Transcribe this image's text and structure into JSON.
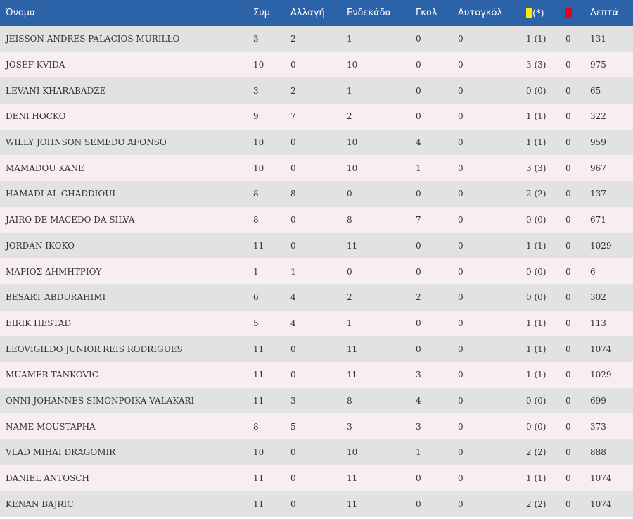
{
  "colors": {
    "header_bg": "#2c63a8",
    "row_odd": "#e2e2e2",
    "row_even": "#f8eef0",
    "yellow_card": "#ffeb00",
    "red_card": "#e8001c"
  },
  "columns": {
    "name": "Όνομα",
    "appearances": "Συμ",
    "substitute": "Αλλαγή",
    "starting": "Ενδεκάδα",
    "goals": "Γκολ",
    "own_goals": "Αυτογκόλ",
    "yellow_suffix": "(*)",
    "minutes": "Λεπτά"
  },
  "players": [
    {
      "name": "JEISSON ANDRES PALACIOS MURILLO",
      "app": "3",
      "sub": "2",
      "start": "1",
      "goals": "0",
      "own": "0",
      "yellow": "1 (1)",
      "red": "0",
      "min": "131"
    },
    {
      "name": "JOSEF KVIDA",
      "app": "10",
      "sub": "0",
      "start": "10",
      "goals": "0",
      "own": "0",
      "yellow": "3 (3)",
      "red": "0",
      "min": "975"
    },
    {
      "name": "LEVANI KHARABADZE",
      "app": "3",
      "sub": "2",
      "start": "1",
      "goals": "0",
      "own": "0",
      "yellow": "0 (0)",
      "red": "0",
      "min": "65"
    },
    {
      "name": "DENI HOCKO",
      "app": "9",
      "sub": "7",
      "start": "2",
      "goals": "0",
      "own": "0",
      "yellow": "1 (1)",
      "red": "0",
      "min": "322"
    },
    {
      "name": "WILLY JOHNSON SEMEDO AFONSO",
      "app": "10",
      "sub": "0",
      "start": "10",
      "goals": "4",
      "own": "0",
      "yellow": "1 (1)",
      "red": "0",
      "min": "959"
    },
    {
      "name": "MAMADOU KANE",
      "app": "10",
      "sub": "0",
      "start": "10",
      "goals": "1",
      "own": "0",
      "yellow": "3 (3)",
      "red": "0",
      "min": "967"
    },
    {
      "name": "HAMADI AL GHADDIOUI",
      "app": "8",
      "sub": "8",
      "start": "0",
      "goals": "0",
      "own": "0",
      "yellow": "2 (2)",
      "red": "0",
      "min": "137"
    },
    {
      "name": "JAIRO DE MACEDO DA SILVA",
      "app": "8",
      "sub": "0",
      "start": "8",
      "goals": "7",
      "own": "0",
      "yellow": "0 (0)",
      "red": "0",
      "min": "671"
    },
    {
      "name": "JORDAN IKOKO",
      "app": "11",
      "sub": "0",
      "start": "11",
      "goals": "0",
      "own": "0",
      "yellow": "1 (1)",
      "red": "0",
      "min": "1029"
    },
    {
      "name": "ΜΑΡΙΟΣ ΔΗΜΗΤΡΙΟΥ",
      "app": "1",
      "sub": "1",
      "start": "0",
      "goals": "0",
      "own": "0",
      "yellow": "0 (0)",
      "red": "0",
      "min": "6"
    },
    {
      "name": "BESART ABDURAHIMI",
      "app": "6",
      "sub": "4",
      "start": "2",
      "goals": "2",
      "own": "0",
      "yellow": "0 (0)",
      "red": "0",
      "min": "302"
    },
    {
      "name": "EIRIK HESTAD",
      "app": "5",
      "sub": "4",
      "start": "1",
      "goals": "0",
      "own": "0",
      "yellow": "1 (1)",
      "red": "0",
      "min": "113"
    },
    {
      "name": "LEOVIGILDO JUNIOR REIS RODRIGUES",
      "app": "11",
      "sub": "0",
      "start": "11",
      "goals": "0",
      "own": "0",
      "yellow": "1 (1)",
      "red": "0",
      "min": "1074"
    },
    {
      "name": "MUAMER TANKOVIC",
      "app": "11",
      "sub": "0",
      "start": "11",
      "goals": "3",
      "own": "0",
      "yellow": "1 (1)",
      "red": "0",
      "min": "1029"
    },
    {
      "name": "ONNI JOHANNES SIMONPOIKA VALAKARI",
      "app": "11",
      "sub": "3",
      "start": "8",
      "goals": "4",
      "own": "0",
      "yellow": "0 (0)",
      "red": "0",
      "min": "699"
    },
    {
      "name": "NAME MOUSTAPHA",
      "app": "8",
      "sub": "5",
      "start": "3",
      "goals": "3",
      "own": "0",
      "yellow": "0 (0)",
      "red": "0",
      "min": "373"
    },
    {
      "name": "VLAD MIHAI DRAGOMIR",
      "app": "10",
      "sub": "0",
      "start": "10",
      "goals": "1",
      "own": "0",
      "yellow": "2 (2)",
      "red": "0",
      "min": "888"
    },
    {
      "name": "DANIEL ANTOSCH",
      "app": "11",
      "sub": "0",
      "start": "11",
      "goals": "0",
      "own": "0",
      "yellow": "1 (1)",
      "red": "0",
      "min": "1074"
    },
    {
      "name": "KENAN BAJRIC",
      "app": "11",
      "sub": "0",
      "start": "11",
      "goals": "0",
      "own": "0",
      "yellow": "2 (2)",
      "red": "0",
      "min": "1074"
    }
  ]
}
